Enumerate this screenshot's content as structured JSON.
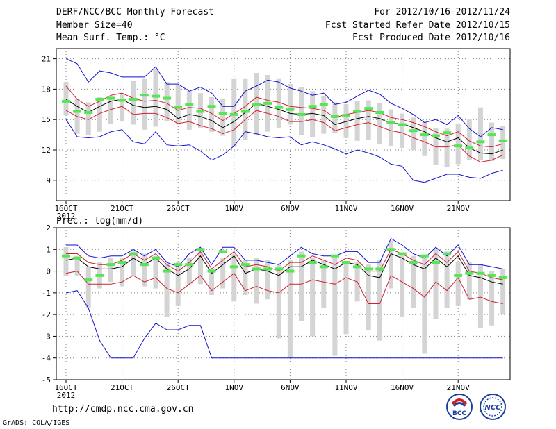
{
  "header": {
    "left": [
      "DERF/NCC/BCC Monthly Forecast",
      "Member Size=40",
      "Mean Surf. Temp.: °C"
    ],
    "right": [
      "For 2012/10/16-2012/11/24",
      "Fcst Started Refer Date 2012/10/15",
      "Fcst Produced Date 2012/10/16"
    ]
  },
  "footer": {
    "url": "http://cmdp.ncc.cma.gov.cn",
    "credit": "GrADS: COLA/IGES"
  },
  "logos": {
    "bcc": "BCC",
    "ncc": "NCC"
  },
  "colors": {
    "box": "#d4d4d4",
    "median": "#55e655",
    "mean": "#000000",
    "spread": "#d02030",
    "extreme": "#1010d0",
    "grid": "#808080"
  },
  "chart_data": [
    {
      "type": "ensemble-box-line",
      "title": "Mean Surf. Temp.: °C",
      "x_ticks": [
        "16OCT",
        "21OCT",
        "26OCT",
        "1NOV",
        "6NOV",
        "11NOV",
        "16NOV",
        "21NOV"
      ],
      "x_sublabel": "2012",
      "days": 40,
      "ylim": [
        7,
        22
      ],
      "y_ticks": [
        9,
        12,
        15,
        18,
        21
      ],
      "box_low": [
        15.4,
        13.6,
        13.5,
        13.8,
        14.6,
        14.8,
        14.5,
        14.0,
        14.3,
        14.8,
        14.5,
        14.0,
        14.2,
        13.8,
        13.4,
        12.3,
        13.0,
        13.5,
        13.8,
        14.2,
        14.5,
        13.5,
        13.3,
        13.6,
        13.7,
        13.2,
        12.9,
        13.0,
        12.6,
        12.4,
        12.2,
        12.0,
        11.4,
        10.5,
        10.3,
        10.6,
        11.0,
        11.0,
        10.9,
        11.1
      ],
      "box_high": [
        18.7,
        17.0,
        16.7,
        17.2,
        17.3,
        17.6,
        18.8,
        19.0,
        20.0,
        18.7,
        18.4,
        17.8,
        17.6,
        17.2,
        17.0,
        19.0,
        19.0,
        19.6,
        19.4,
        19.0,
        18.5,
        18.2,
        17.8,
        17.3,
        16.7,
        16.5,
        16.8,
        16.9,
        16.6,
        16.0,
        15.6,
        15.2,
        14.8,
        14.2,
        14.1,
        14.6,
        15.0,
        16.2,
        14.7,
        14.4
      ],
      "median": [
        16.8,
        15.8,
        15.7,
        17.0,
        17.1,
        16.9,
        17.0,
        17.4,
        17.3,
        17.1,
        16.2,
        16.5,
        15.8,
        16.3,
        15.6,
        15.5,
        15.8,
        16.5,
        16.6,
        16.2,
        16.0,
        15.5,
        16.3,
        16.5,
        15.3,
        15.4,
        15.8,
        16.1,
        15.7,
        14.7,
        14.5,
        13.9,
        13.5,
        13.4,
        13.7,
        12.4,
        12.2,
        12.8,
        13.5,
        12.9
      ],
      "series": [
        {
          "name": "ensemble mean",
          "color": "#000000",
          "values": [
            17.0,
            16.3,
            15.7,
            16.3,
            16.8,
            17.0,
            16.4,
            16.2,
            16.3,
            16.0,
            15.1,
            15.5,
            15.3,
            14.9,
            14.2,
            14.8,
            15.7,
            16.6,
            16.3,
            16.0,
            15.6,
            15.5,
            15.6,
            15.4,
            14.5,
            14.8,
            15.1,
            15.3,
            15.1,
            14.6,
            14.6,
            14.2,
            13.8,
            13.2,
            12.8,
            13.2,
            12.2,
            11.7,
            11.6,
            12.0
          ]
        },
        {
          "name": "mean + 1 std",
          "color": "#d02030",
          "values": [
            18.3,
            17.0,
            16.3,
            16.8,
            17.4,
            17.6,
            17.1,
            16.8,
            16.9,
            16.6,
            15.9,
            16.2,
            16.1,
            15.6,
            14.9,
            15.6,
            16.3,
            17.2,
            16.9,
            16.7,
            16.3,
            16.2,
            16.1,
            15.9,
            15.2,
            15.5,
            15.7,
            15.9,
            15.7,
            15.2,
            15.0,
            14.7,
            14.3,
            13.8,
            13.4,
            13.8,
            12.9,
            12.4,
            12.3,
            12.6
          ]
        },
        {
          "name": "mean - 1 std",
          "color": "#d02030",
          "values": [
            15.9,
            15.3,
            15.0,
            15.6,
            16.0,
            16.3,
            15.5,
            15.6,
            15.6,
            15.2,
            14.6,
            14.8,
            14.4,
            14.1,
            13.6,
            14.0,
            15.0,
            15.9,
            15.6,
            15.3,
            14.8,
            14.8,
            15.0,
            14.7,
            13.9,
            14.2,
            14.5,
            14.7,
            14.3,
            13.9,
            13.7,
            13.2,
            12.8,
            12.3,
            12.3,
            12.5,
            11.4,
            10.8,
            11.0,
            11.5
          ]
        },
        {
          "name": "ensemble max",
          "color": "#1010d0",
          "values": [
            21.0,
            20.5,
            18.7,
            19.8,
            19.6,
            19.2,
            19.2,
            19.2,
            20.2,
            18.5,
            18.5,
            17.8,
            18.2,
            17.6,
            16.3,
            16.3,
            17.8,
            18.3,
            18.9,
            18.7,
            18.1,
            17.8,
            17.4,
            17.6,
            16.5,
            16.7,
            17.3,
            17.9,
            17.5,
            16.6,
            16.1,
            15.5,
            14.7,
            15.0,
            14.5,
            15.4,
            14.1,
            13.3,
            14.2,
            14.0
          ]
        },
        {
          "name": "ensemble min",
          "color": "#1010d0",
          "values": [
            15.0,
            13.3,
            13.2,
            13.3,
            13.8,
            14.0,
            12.8,
            12.6,
            13.8,
            12.5,
            12.4,
            12.5,
            11.9,
            11.0,
            11.5,
            12.4,
            13.8,
            13.6,
            13.3,
            13.2,
            13.3,
            12.5,
            12.8,
            12.5,
            12.1,
            11.6,
            12.0,
            11.7,
            11.3,
            10.6,
            10.4,
            9.0,
            8.8,
            9.2,
            9.6,
            9.6,
            9.3,
            9.2,
            9.7,
            10.0
          ]
        }
      ]
    },
    {
      "type": "ensemble-box-line",
      "title": "Prec.: log(mm/d)",
      "x_ticks": [
        "16OCT",
        "21OCT",
        "26OCT",
        "1NOV",
        "6NOV",
        "11NOV",
        "16NOV",
        "21NOV"
      ],
      "x_sublabel": "2012",
      "days": 40,
      "ylim": [
        -5,
        2
      ],
      "y_ticks": [
        -5,
        -4,
        -3,
        -2,
        -1,
        0,
        1,
        2
      ],
      "box_low": [
        -0.2,
        -0.2,
        -1.7,
        -0.8,
        -0.5,
        -0.7,
        -0.2,
        -0.7,
        -0.8,
        -2.1,
        -1.6,
        -0.6,
        -0.6,
        -1.1,
        -0.8,
        -1.4,
        -1.1,
        -1.5,
        -1.3,
        -3.1,
        -4.0,
        -2.3,
        -3.0,
        -1.7,
        -3.9,
        -2.9,
        -1.4,
        -2.7,
        -3.2,
        -0.8,
        -2.1,
        -1.7,
        -3.8,
        -2.2,
        -1.7,
        -1.6,
        -1.3,
        -2.6,
        -2.5,
        -2.0
      ],
      "box_high": [
        1.1,
        0.7,
        0.2,
        0.4,
        0.6,
        0.6,
        0.9,
        0.8,
        0.7,
        0.3,
        0.4,
        0.6,
        0.9,
        0.1,
        0.6,
        0.8,
        0.5,
        0.6,
        0.5,
        0.3,
        0.5,
        0.9,
        0.6,
        0.5,
        0.7,
        0.4,
        0.4,
        0.3,
        0.5,
        1.4,
        0.8,
        0.7,
        0.6,
        1.0,
        0.9,
        0.4,
        0.4,
        0.3,
        0.0,
        0.1
      ],
      "median": [
        0.7,
        0.6,
        -0.4,
        -0.2,
        0.3,
        0.4,
        0.8,
        0.3,
        0.6,
        0.0,
        0.3,
        0.3,
        1.0,
        0.0,
        0.9,
        0.2,
        0.3,
        0.1,
        0.1,
        0.1,
        0.0,
        0.7,
        0.4,
        0.2,
        0.7,
        0.4,
        0.2,
        0.1,
        0.1,
        1.0,
        0.8,
        0.4,
        0.7,
        0.4,
        0.8,
        -0.2,
        -0.1,
        -0.1,
        -0.2,
        -0.3
      ],
      "series": [
        {
          "name": "ensemble mean",
          "color": "#000000",
          "values": [
            0.5,
            0.6,
            0.2,
            0.1,
            0.1,
            0.2,
            0.6,
            0.3,
            0.6,
            0.1,
            -0.2,
            0.1,
            0.7,
            -0.1,
            0.3,
            0.7,
            -0.1,
            0.1,
            0.0,
            -0.2,
            0.2,
            0.2,
            0.5,
            0.3,
            0.1,
            0.4,
            0.3,
            -0.2,
            -0.3,
            0.8,
            0.6,
            0.3,
            0.1,
            0.6,
            0.2,
            0.7,
            -0.2,
            -0.3,
            -0.5,
            -0.6
          ]
        },
        {
          "name": "mean + 1 std",
          "color": "#d02030",
          "values": [
            0.8,
            0.8,
            0.4,
            0.3,
            0.3,
            0.5,
            0.8,
            0.5,
            0.8,
            0.3,
            0.0,
            0.4,
            0.9,
            0.1,
            0.5,
            0.9,
            0.2,
            0.3,
            0.2,
            0.0,
            0.4,
            0.4,
            0.7,
            0.5,
            0.3,
            0.6,
            0.5,
            0.0,
            0.0,
            1.0,
            0.8,
            0.5,
            0.3,
            0.8,
            0.4,
            0.9,
            0.0,
            -0.1,
            -0.3,
            -0.4
          ]
        },
        {
          "name": "mean - 1 std",
          "color": "#d02030",
          "values": [
            -0.1,
            0.0,
            -0.6,
            -0.6,
            -0.6,
            -0.5,
            -0.2,
            -0.5,
            -0.3,
            -0.8,
            -1.0,
            -0.6,
            -0.2,
            -0.9,
            -0.5,
            -0.1,
            -0.9,
            -0.7,
            -0.9,
            -1.0,
            -0.6,
            -0.6,
            -0.4,
            -0.5,
            -0.6,
            -0.3,
            -0.5,
            -1.5,
            -1.5,
            -0.2,
            -0.5,
            -0.8,
            -1.2,
            -0.5,
            -0.9,
            -0.3,
            -1.3,
            -1.2,
            -1.4,
            -1.5
          ]
        },
        {
          "name": "ensemble max",
          "color": "#1010d0",
          "values": [
            1.2,
            1.2,
            0.7,
            0.6,
            0.7,
            0.7,
            1.0,
            0.7,
            1.0,
            0.4,
            0.2,
            0.8,
            1.1,
            0.3,
            1.1,
            1.1,
            0.5,
            0.5,
            0.4,
            0.3,
            0.7,
            1.1,
            0.8,
            0.7,
            0.7,
            0.9,
            0.9,
            0.4,
            0.4,
            1.5,
            1.2,
            0.8,
            0.6,
            1.1,
            0.7,
            1.2,
            0.3,
            0.3,
            0.2,
            0.1
          ]
        },
        {
          "name": "ensemble min",
          "color": "#1010d0",
          "values": [
            -1.0,
            -0.9,
            -1.7,
            -3.2,
            -4.0,
            -4.0,
            -4.0,
            -3.1,
            -2.4,
            -2.7,
            -2.7,
            -2.5,
            -2.5,
            -4.0,
            -4.0,
            -4.0,
            -4.0,
            -4.0,
            -4.0,
            -4.0,
            -4.0,
            -4.0,
            -4.0,
            -4.0,
            -4.0,
            -4.0,
            -4.0,
            -4.0,
            -4.0,
            -4.0,
            -4.0,
            -4.0,
            -4.0,
            -4.0,
            -4.0,
            -4.0,
            -4.0,
            -4.0,
            -4.0,
            -4.0
          ]
        }
      ]
    }
  ]
}
